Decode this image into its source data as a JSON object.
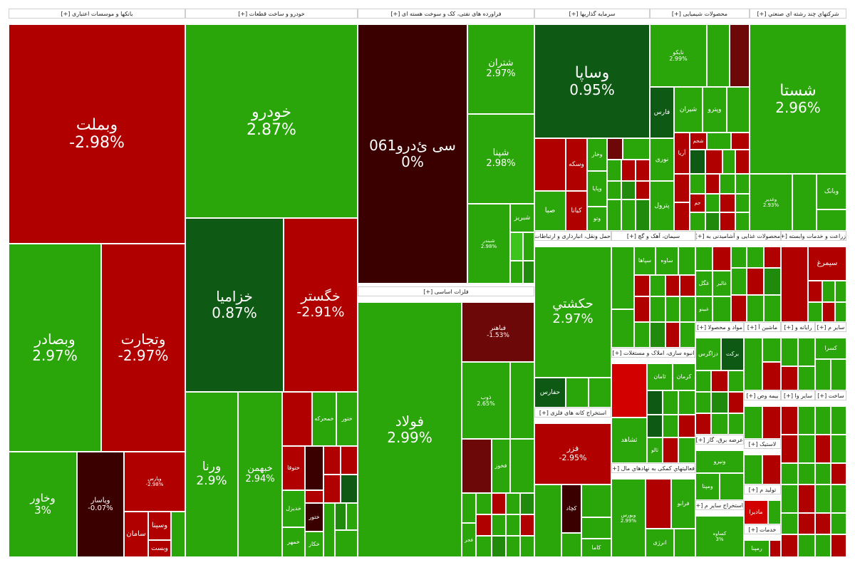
{
  "colors": {
    "strong_green": "#2aa50a",
    "dark_green": "#0e5a14",
    "mid_green": "#1f8a0c",
    "red": "#b00000",
    "dark_red": "#6d0808",
    "very_dark_red": "#3a0000",
    "bright_red": "#d30000",
    "header_bg": "#ffffff"
  },
  "sectors": [
    {
      "name": "بانکها و موسسات اعتباری [+]"
    },
    {
      "name": "خودرو و ساخت قطعات [+]"
    },
    {
      "name": "فراورده های نفتی، کک و سوخت هسته ای [+]"
    },
    {
      "name": "سرمایه گذاریها [+]"
    },
    {
      "name": "محصولات شیمیایی [+]"
    },
    {
      "name": "شرکتهاي چند رشته اي صنعتي [+]"
    },
    {
      "name": "فلزات اساسی [+]"
    },
    {
      "name": "حمل ونقل، انبارداری و ارتباطات [+]"
    },
    {
      "name": "سیمان، آهک و گچ [+]"
    },
    {
      "name": "محصولات غذایی و آشامیدنی به [+]"
    },
    {
      "name": "زراعت و خدمات وابسته [+]"
    },
    {
      "name": "انبوه سازی، املاک و مستغلات [+]"
    },
    {
      "name": "استخراج کانه های فلزی [+]"
    },
    {
      "name": "فعالیتهاي کمکی به نهادهاي مال [+]"
    },
    {
      "name": "مواد و محصولا [+]"
    },
    {
      "name": "ماشین آ [+]"
    },
    {
      "name": "رایانه و [+]"
    },
    {
      "name": "سایر م [+]"
    },
    {
      "name": "عرضه برق، گاز [+]"
    },
    {
      "name": "بیمه وص [+]"
    },
    {
      "name": "سایر وا [+]"
    },
    {
      "name": "ساخت [+]"
    },
    {
      "name": "استخراج سایر م [+]"
    },
    {
      "name": "تولید م [+]"
    },
    {
      "name": "لاستیک [+]"
    },
    {
      "name": "خدمات [+]"
    }
  ],
  "tiles": [
    {
      "name": "وبملت",
      "pct": "-2.98%"
    },
    {
      "name": "وبصادر",
      "pct": "2.97%"
    },
    {
      "name": "وتجارت",
      "pct": "-2.97%"
    },
    {
      "name": "وخاور",
      "pct": "3%"
    },
    {
      "name": "وپاسار",
      "pct": "-0.07%"
    },
    {
      "name": "وپارس",
      "pct": "-2.98%"
    },
    {
      "name": "وسینا",
      "pct": ""
    },
    {
      "name": "سامان",
      "pct": ""
    },
    {
      "name": "وبست",
      "pct": ""
    },
    {
      "name": "خودرو",
      "pct": "2.87%"
    },
    {
      "name": "خزامیا",
      "pct": "0.87%"
    },
    {
      "name": "خگستر",
      "pct": "-2.91%"
    },
    {
      "name": "ورنا",
      "pct": "2.9%"
    },
    {
      "name": "خبهمن",
      "pct": "2.94%"
    },
    {
      "name": "خمحرکه",
      "pct": ""
    },
    {
      "name": "ختوقا",
      "pct": ""
    },
    {
      "name": "خزامیا",
      "pct": ""
    },
    {
      "name": "خدیزل",
      "pct": ""
    },
    {
      "name": "ختور",
      "pct": ""
    },
    {
      "name": "خمهر",
      "pct": ""
    },
    {
      "name": "خکار",
      "pct": ""
    },
    {
      "name": "سی ئ‌درو061",
      "pct": "0%"
    },
    {
      "name": "شتران",
      "pct": "2.97%"
    },
    {
      "name": "شپنا",
      "pct": "2.98%"
    },
    {
      "name": "شبندر",
      "pct": "2.98%"
    },
    {
      "name": "شبریز",
      "pct": ""
    },
    {
      "name": "وساپا",
      "pct": "0.95%"
    },
    {
      "name": "صبا",
      "pct": ""
    },
    {
      "name": "کیانا",
      "pct": ""
    },
    {
      "name": "وپایا",
      "pct": ""
    },
    {
      "name": "وتو",
      "pct": ""
    },
    {
      "name": "وخار",
      "pct": ""
    },
    {
      "name": "وسکه",
      "pct": ""
    },
    {
      "name": "نایکو",
      "pct": "2.99%"
    },
    {
      "name": "فارس",
      "pct": ""
    },
    {
      "name": "شیران",
      "pct": ""
    },
    {
      "name": "وپترو",
      "pct": ""
    },
    {
      "name": "نوری",
      "pct": ""
    },
    {
      "name": "پترول",
      "pct": ""
    },
    {
      "name": "آریا",
      "pct": ""
    },
    {
      "name": "شجم",
      "pct": ""
    },
    {
      "name": "جم",
      "pct": ""
    },
    {
      "name": "شستا",
      "pct": "2.96%"
    },
    {
      "name": "وبانک",
      "pct": ""
    },
    {
      "name": "وغدیر",
      "pct": "2.93%"
    },
    {
      "name": "فولاد",
      "pct": "2.99%"
    },
    {
      "name": "فباهنر",
      "pct": "-1.53%"
    },
    {
      "name": "ذوب",
      "pct": "2.65%"
    },
    {
      "name": "فخوز",
      "pct": ""
    },
    {
      "name": "فجر",
      "pct": ""
    },
    {
      "name": "حکشتي",
      "pct": "2.97%"
    },
    {
      "name": "حفارس",
      "pct": ""
    },
    {
      "name": "ساوه",
      "pct": ""
    },
    {
      "name": "سپاها",
      "pct": ""
    },
    {
      "name": "سهگ",
      "pct": ""
    },
    {
      "name": "غگل",
      "pct": ""
    },
    {
      "name": "غالبر",
      "pct": ""
    },
    {
      "name": "غبینو",
      "pct": ""
    },
    {
      "name": "سیمرغ",
      "pct": ""
    },
    {
      "name": "فزر",
      "pct": "-2.95%"
    },
    {
      "name": "کچاد",
      "pct": ""
    },
    {
      "name": "کاما",
      "pct": ""
    },
    {
      "name": "وکغدیر",
      "pct": ""
    },
    {
      "name": "ثامان",
      "pct": ""
    },
    {
      "name": "کرمان",
      "pct": ""
    },
    {
      "name": "ثشاهد",
      "pct": ""
    },
    {
      "name": "ثالو",
      "pct": ""
    },
    {
      "name": "وبورس",
      "pct": "2.99%"
    },
    {
      "name": "فرابو",
      "pct": ""
    },
    {
      "name": "انرژی",
      "pct": ""
    },
    {
      "name": "دزاگرس",
      "pct": ""
    },
    {
      "name": "برکت",
      "pct": ""
    },
    {
      "name": "ونیرو",
      "pct": ""
    },
    {
      "name": "ومپنا",
      "pct": ""
    },
    {
      "name": "کساوه",
      "pct": "3%"
    },
    {
      "name": "مادیرا",
      "pct": ""
    },
    {
      "name": "رمپنا",
      "pct": ""
    },
    {
      "name": "کسرا",
      "pct": ""
    }
  ]
}
